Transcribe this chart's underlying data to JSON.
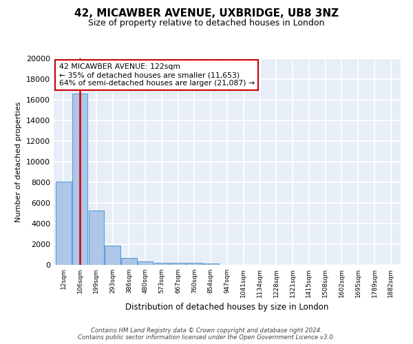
{
  "title": "42, MICAWBER AVENUE, UXBRIDGE, UB8 3NZ",
  "subtitle": "Size of property relative to detached houses in London",
  "xlabel": "Distribution of detached houses by size in London",
  "ylabel": "Number of detached properties",
  "bin_labels": [
    "12sqm",
    "106sqm",
    "199sqm",
    "293sqm",
    "386sqm",
    "480sqm",
    "573sqm",
    "667sqm",
    "760sqm",
    "854sqm",
    "947sqm",
    "1041sqm",
    "1134sqm",
    "1228sqm",
    "1321sqm",
    "1415sqm",
    "1508sqm",
    "1602sqm",
    "1695sqm",
    "1789sqm",
    "1882sqm"
  ],
  "bar_heights": [
    8100,
    16600,
    5300,
    1850,
    700,
    330,
    220,
    190,
    170,
    150,
    0,
    0,
    0,
    0,
    0,
    0,
    0,
    0,
    0,
    0,
    0
  ],
  "bar_color": "#aec6e8",
  "bar_edge_color": "#5a9fd4",
  "background_color": "#e8eef8",
  "grid_color": "#ffffff",
  "ylim": [
    0,
    20000
  ],
  "yticks": [
    0,
    2000,
    4000,
    6000,
    8000,
    10000,
    12000,
    14000,
    16000,
    18000,
    20000
  ],
  "property_line_x": 1,
  "property_line_color": "#cc0000",
  "annotation_text": "42 MICAWBER AVENUE: 122sqm\n← 35% of detached houses are smaller (11,653)\n64% of semi-detached houses are larger (21,087) →",
  "annotation_box_color": "#ffffff",
  "annotation_box_edge": "#cc0000",
  "footer_text": "Contains HM Land Registry data © Crown copyright and database right 2024.\nContains public sector information licensed under the Open Government Licence v3.0."
}
